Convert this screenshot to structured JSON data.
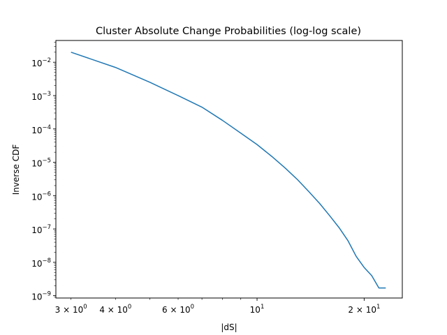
{
  "chart_data": {
    "type": "line",
    "title": "Cluster Absolute Change Probabilities (log-log scale)",
    "xlabel": "|dS|",
    "ylabel": "Inverse CDF",
    "x_scale": "log",
    "y_scale": "log",
    "xlim": [
      2.72,
      25.6
    ],
    "ylim": [
      8.5e-10,
      0.045
    ],
    "grid": false,
    "color": "#1f77b4",
    "x_major_ticks": [
      {
        "value": 10,
        "base": "10",
        "exp": "1"
      },
      {
        "value": 20,
        "base": "2 × 10",
        "exp": "1"
      }
    ],
    "x_minor_ticks": [
      {
        "value": 3,
        "base": "3 × 10",
        "exp": "0"
      },
      {
        "value": 4,
        "base": "4 × 10",
        "exp": "0"
      },
      {
        "value": 6,
        "base": "6 × 10",
        "exp": "0"
      }
    ],
    "x_unlabeled_minor_ticks": [
      5,
      7,
      8,
      9
    ],
    "y_major_ticks": [
      {
        "value": 1e-09,
        "base": "10",
        "exp": "−9"
      },
      {
        "value": 1e-08,
        "base": "10",
        "exp": "−8"
      },
      {
        "value": 1e-07,
        "base": "10",
        "exp": "−7"
      },
      {
        "value": 1e-06,
        "base": "10",
        "exp": "−6"
      },
      {
        "value": 1e-05,
        "base": "10",
        "exp": "−5"
      },
      {
        "value": 0.0001,
        "base": "10",
        "exp": "−4"
      },
      {
        "value": 0.001,
        "base": "10",
        "exp": "−3"
      },
      {
        "value": 0.01,
        "base": "10",
        "exp": "−2"
      }
    ],
    "series": [
      {
        "x": [
          3,
          4,
          5,
          6,
          7,
          8,
          9,
          10,
          11,
          12,
          13,
          14,
          15,
          16,
          17,
          18,
          19,
          20,
          21,
          22,
          23
        ],
        "y": [
          0.02,
          0.007,
          0.0025,
          0.001,
          0.00045,
          0.00018,
          7.5e-05,
          3.4e-05,
          1.5e-05,
          6.7e-06,
          3e-06,
          1.3e-06,
          5.8e-07,
          2.5e-07,
          1.1e-07,
          4.5e-08,
          1.5e-08,
          7e-09,
          4e-09,
          1.7e-09,
          1.7e-09
        ]
      }
    ]
  }
}
